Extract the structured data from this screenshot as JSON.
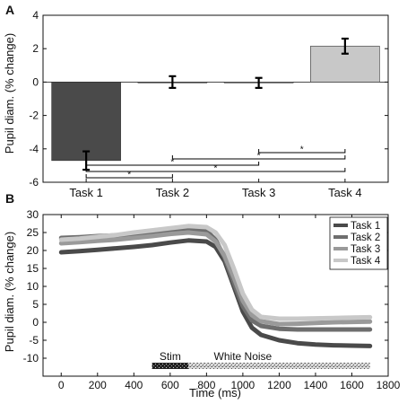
{
  "panels": {
    "a": {
      "letter": "A"
    },
    "b": {
      "letter": "B"
    }
  },
  "colors": {
    "task1": "#4a4a4a",
    "task2": "#6e6e6e",
    "task3": "#9a9a9a",
    "task4": "#c8c8c8",
    "axis": "#111111"
  },
  "chart_data": [
    {
      "type": "bar",
      "categories": [
        "Task 1",
        "Task 2",
        "Task 3",
        "Task 4"
      ],
      "values": [
        -4.7,
        0.0,
        -0.05,
        2.15
      ],
      "errors": [
        0.55,
        0.35,
        0.3,
        0.45
      ],
      "ylabel": "Pupil diam. (% change)",
      "ylim": [
        -6,
        4
      ],
      "yticks": [
        "-6",
        "-4",
        "-2",
        "0",
        "2",
        "4"
      ],
      "significance": {
        "symbol": "*",
        "pairs": [
          [
            3,
            4
          ],
          [
            2,
            4
          ],
          [
            1,
            3
          ],
          [
            1,
            4
          ],
          [
            1,
            2
          ]
        ]
      }
    },
    {
      "type": "line",
      "ylabel": "Pupil diam. (% change)",
      "xlabel": "Time (ms)",
      "xlim": [
        -100,
        1800
      ],
      "ylim": [
        -15,
        30
      ],
      "xticks": [
        "0",
        "200",
        "400",
        "600",
        "800",
        "1000",
        "1200",
        "1400",
        "1600",
        "1800"
      ],
      "yticks": [
        "-10",
        "-5",
        "0",
        "5",
        "10",
        "15",
        "20",
        "25",
        "30"
      ],
      "legend_position": "top-right",
      "annotations": {
        "stim_label": "Stim",
        "noise_label": "White Noise",
        "stim_range": [
          500,
          700
        ],
        "noise_range": [
          700,
          1700
        ]
      },
      "x": [
        0,
        100,
        200,
        300,
        400,
        500,
        600,
        700,
        800,
        850,
        900,
        950,
        1000,
        1050,
        1100,
        1200,
        1300,
        1400,
        1500,
        1600,
        1700
      ],
      "series": [
        {
          "name": "Task 1",
          "values": [
            19.5,
            19.8,
            20.2,
            20.6,
            21.0,
            21.5,
            22.2,
            22.8,
            22.5,
            21.0,
            17.0,
            10.0,
            3.0,
            -1.5,
            -3.5,
            -5.0,
            -5.8,
            -6.2,
            -6.4,
            -6.5,
            -6.6
          ]
        },
        {
          "name": "Task 2",
          "values": [
            23.5,
            23.7,
            24.0,
            24.2,
            24.5,
            25.0,
            25.5,
            26.2,
            25.5,
            23.0,
            18.0,
            11.0,
            4.5,
            0.5,
            -1.0,
            -1.8,
            -2.0,
            -2.0,
            -2.0,
            -2.0,
            -2.0
          ]
        },
        {
          "name": "Task 3",
          "values": [
            22.0,
            22.3,
            22.7,
            23.0,
            23.5,
            24.0,
            24.6,
            25.0,
            24.5,
            22.5,
            18.5,
            12.5,
            6.0,
            2.0,
            0.3,
            -0.5,
            -0.4,
            -0.2,
            0.0,
            0.1,
            0.2
          ]
        },
        {
          "name": "Task 4",
          "values": [
            23.0,
            23.3,
            23.8,
            24.3,
            25.0,
            25.6,
            26.2,
            26.8,
            26.5,
            25.0,
            21.5,
            15.0,
            8.0,
            3.5,
            1.5,
            1.0,
            1.0,
            1.1,
            1.2,
            1.3,
            1.4
          ]
        }
      ]
    }
  ]
}
